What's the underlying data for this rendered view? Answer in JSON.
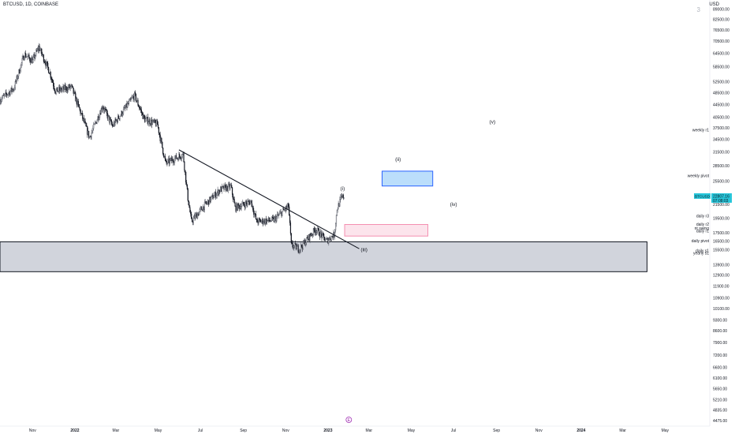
{
  "header": {
    "symbol_line": "BTCUSD, 1D, COINBASE",
    "corner_mark": "3"
  },
  "axis": {
    "unit_label": "USD"
  },
  "colors": {
    "candle_up": "#26a69a",
    "candle_down": "#131722",
    "trendline": "#131722",
    "support_fill": "#d1d4dc",
    "support_stroke": "#131722",
    "blue_zone_fill": "#bbdefb",
    "blue_zone_stroke": "#2962ff",
    "pink_zone_fill": "#fce4ec",
    "pink_zone_stroke": "#f48fb1",
    "price_tag_bg": "#26c6da",
    "price_tag_text": "#131722"
  },
  "chart_data": {
    "type": "candlestick",
    "title": "BTCUSD, 1D, COINBASE",
    "y_scale": "log",
    "ylim": [
      4300,
      95000
    ],
    "x_range": [
      "2021-09-15",
      "2024-05-20"
    ],
    "x_ticks": [
      {
        "date": "2021-11-01",
        "label": "Nov"
      },
      {
        "date": "2022-01-01",
        "label": "2022"
      },
      {
        "date": "2022-03-01",
        "label": "Mar"
      },
      {
        "date": "2022-05-01",
        "label": "May"
      },
      {
        "date": "2022-07-01",
        "label": "Jul"
      },
      {
        "date": "2022-09-01",
        "label": "Sep"
      },
      {
        "date": "2022-11-01",
        "label": "Nov"
      },
      {
        "date": "2023-01-01",
        "label": "2023"
      },
      {
        "date": "2023-03-01",
        "label": "Mar"
      },
      {
        "date": "2023-05-01",
        "label": "May"
      },
      {
        "date": "2023-07-01",
        "label": "Jul"
      },
      {
        "date": "2023-09-01",
        "label": "Sep"
      },
      {
        "date": "2023-11-01",
        "label": "Nov"
      },
      {
        "date": "2024-01-01",
        "label": "2024"
      },
      {
        "date": "2024-03-01",
        "label": "Mar"
      },
      {
        "date": "2024-05-01",
        "label": "May"
      }
    ],
    "y_ticks": [
      89000,
      82500,
      76500,
      70500,
      64500,
      58500,
      52500,
      48500,
      44500,
      40500,
      37500,
      34500,
      31500,
      28500,
      25500,
      21500,
      19500,
      17500,
      16500,
      15500,
      13900,
      12900,
      11900,
      10900,
      10100,
      9300,
      8600,
      7900,
      7200,
      6600,
      6100,
      5650,
      5210,
      4835,
      4475
    ],
    "y_tick_labels": [
      "89000.00",
      "82500.00",
      "76500.00",
      "70500.00",
      "64500.00",
      "58500.00",
      "52500.00",
      "48500.00",
      "44500.00",
      "40500.00",
      "37500.00",
      "34500.00",
      "31500.00",
      "28500.00",
      "25500.00",
      "21500.00",
      "19500.00",
      "17500.00",
      "16500.00",
      "15500.00",
      "13900.00",
      "12900.00",
      "11900.00",
      "10900.00",
      "10100.00",
      "9300.00",
      "8600.00",
      "7900.00",
      "7200.00",
      "6600.00",
      "6100.00",
      "5650.00",
      "5210.00",
      "4835.00",
      "4475.00"
    ],
    "price_path": [
      [
        "2021-09-15",
        46000
      ],
      [
        "2021-10-05",
        50000
      ],
      [
        "2021-10-20",
        64000
      ],
      [
        "2021-11-01",
        61000
      ],
      [
        "2021-11-10",
        67500
      ],
      [
        "2021-11-26",
        56000
      ],
      [
        "2021-12-04",
        49000
      ],
      [
        "2021-12-27",
        50500
      ],
      [
        "2022-01-10",
        41500
      ],
      [
        "2022-01-22",
        35000
      ],
      [
        "2022-02-10",
        44000
      ],
      [
        "2022-02-24",
        38000
      ],
      [
        "2022-03-28",
        47500
      ],
      [
        "2022-04-11",
        40000
      ],
      [
        "2022-04-30",
        38500
      ],
      [
        "2022-05-09",
        31000
      ],
      [
        "2022-05-12",
        29000
      ],
      [
        "2022-06-06",
        31000
      ],
      [
        "2022-06-13",
        22500
      ],
      [
        "2022-06-18",
        19000
      ],
      [
        "2022-07-08",
        21500
      ],
      [
        "2022-07-30",
        24000
      ],
      [
        "2022-08-14",
        24500
      ],
      [
        "2022-08-20",
        21000
      ],
      [
        "2022-09-12",
        22000
      ],
      [
        "2022-09-20",
        19000
      ],
      [
        "2022-10-15",
        19200
      ],
      [
        "2022-11-05",
        21300
      ],
      [
        "2022-11-09",
        16000
      ],
      [
        "2022-11-21",
        15600
      ],
      [
        "2022-12-14",
        18000
      ],
      [
        "2022-12-30",
        16500
      ],
      [
        "2023-01-10",
        17300
      ],
      [
        "2023-01-14",
        20800
      ],
      [
        "2023-01-20",
        22500
      ],
      [
        "2023-01-24",
        22850
      ]
    ],
    "trendline": [
      [
        "2022-05-31",
        32000
      ],
      [
        "2023-02-15",
        15600
      ]
    ],
    "zones": [
      {
        "name": "support",
        "x": [
          "2021-09-15",
          "2024-04-05"
        ],
        "y": [
          13200,
          16400
        ]
      },
      {
        "name": "blue",
        "x": [
          "2023-03-20",
          "2023-06-01"
        ],
        "y": [
          24600,
          27400
        ]
      },
      {
        "name": "pink",
        "x": [
          "2023-01-25",
          "2023-05-25"
        ],
        "y": [
          17100,
          18600
        ]
      }
    ],
    "wave_labels": [
      {
        "text": "(i)",
        "date": "2023-01-22",
        "value": 23900
      },
      {
        "text": "(ii)",
        "date": "2023-04-12",
        "value": 29500
      },
      {
        "text": "(iii)",
        "date": "2023-02-22",
        "value": 15300
      },
      {
        "text": "(iv)",
        "date": "2023-07-01",
        "value": 21300
      },
      {
        "text": "(v)",
        "date": "2023-08-26",
        "value": 38700
      }
    ],
    "level_labels": [
      {
        "text": "weekly r1",
        "value": 37000
      },
      {
        "text": "weekly pivot",
        "value": 26500
      },
      {
        "text": "daily r3",
        "value": 19800
      },
      {
        "text": "daily r2",
        "value": 18650
      },
      {
        "text": "nt swing",
        "value": 18100
      },
      {
        "text": "daily r1",
        "value": 17750
      },
      {
        "text": "daily pivot",
        "value": 16550
      },
      {
        "text": "daily s1",
        "value": 15400
      },
      {
        "text": "yearly s1",
        "value": 15150
      }
    ],
    "current_price": {
      "label": "BTCUSD",
      "value": "22807.16",
      "timer": "07:08:03",
      "numeric": 22807.16
    },
    "event_marker": {
      "text": "E",
      "date": "2023-01-31"
    }
  }
}
